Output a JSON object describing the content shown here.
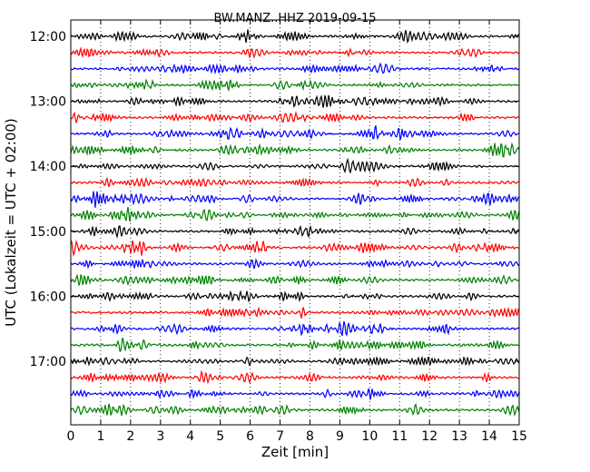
{
  "chart_data": {
    "type": "line",
    "title": "BW.MANZ..HHZ 2019-09-15",
    "xlabel": "Zeit  [min]",
    "ylabel": "UTC (Lokalzeit = UTC + 02:00)",
    "xlim": [
      0,
      15
    ],
    "x_ticks": [
      "0",
      "1",
      "2",
      "3",
      "4",
      "5",
      "6",
      "7",
      "8",
      "9",
      "10",
      "11",
      "12",
      "13",
      "14",
      "15"
    ],
    "y_tick_labels": [
      "12:00",
      "13:00",
      "14:00",
      "15:00",
      "16:00",
      "17:00"
    ],
    "y_tick_rows": [
      0,
      4,
      8,
      12,
      16,
      20
    ],
    "traces_start": "12:00",
    "traces_interval_min": 15,
    "traces_count": 24,
    "trace_colors": [
      "#000000",
      "#ff0000",
      "#0000ff",
      "#008000"
    ],
    "grid": "vertical dotted",
    "legend": "none"
  }
}
